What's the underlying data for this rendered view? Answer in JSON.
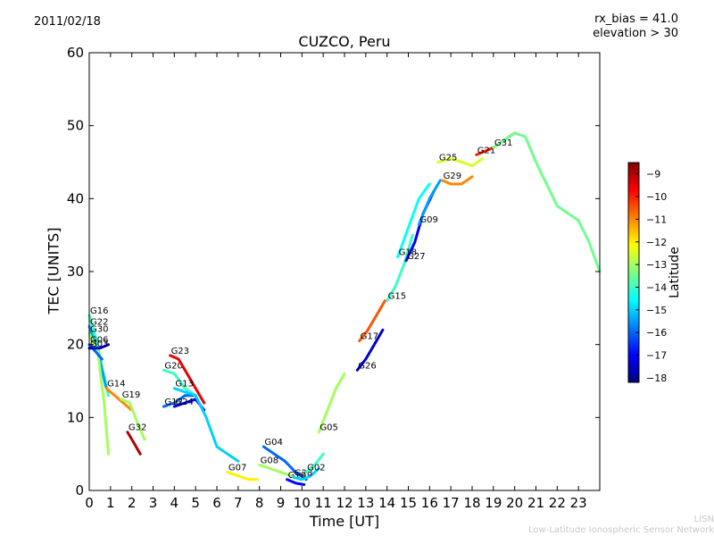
{
  "header": {
    "date": "2011/02/18",
    "annotation_line1": "rx_bias = 41.0",
    "annotation_line2": "elevation > 30"
  },
  "footer": {
    "credit_line1": "LISN",
    "credit_line2": "Low-Latitude Ionospheric Sensor Network"
  },
  "chart_data": {
    "type": "line",
    "title": "CUZCO, Peru",
    "xlabel": "Time [UT]",
    "ylabel": "TEC [UNITS]",
    "xlim": [
      0,
      24
    ],
    "ylim": [
      0,
      60
    ],
    "xticks": [
      0,
      1,
      2,
      3,
      4,
      5,
      6,
      7,
      8,
      9,
      10,
      11,
      12,
      13,
      14,
      15,
      16,
      17,
      18,
      19,
      20,
      21,
      22,
      23
    ],
    "yticks": [
      0,
      10,
      20,
      30,
      40,
      50,
      60
    ],
    "colorbar": {
      "label": "Latitude",
      "range": [
        -18.2,
        -8.5
      ],
      "ticks": [
        -9,
        -10,
        -11,
        -12,
        -13,
        -14,
        -15,
        -16,
        -17,
        -18
      ],
      "colormap": "jet",
      "colors": [
        "#00007f",
        "#0000ff",
        "#007fff",
        "#00ffff",
        "#7fff7f",
        "#ffff00",
        "#ff7f00",
        "#ff0000",
        "#7f0000"
      ]
    },
    "series": [
      {
        "name": "G16",
        "lat": -14.0,
        "x": [
          0,
          0.3,
          0.6,
          0.9
        ],
        "y": [
          24,
          21,
          17,
          13
        ]
      },
      {
        "name": "G22",
        "lat": -15.5,
        "x": [
          0,
          0.4,
          0.8
        ],
        "y": [
          22.5,
          19,
          14
        ]
      },
      {
        "name": "G30",
        "lat": -13.0,
        "x": [
          0,
          0.4,
          0.7,
          0.9
        ],
        "y": [
          21.5,
          19,
          12,
          5
        ]
      },
      {
        "name": "G06",
        "lat": -16.0,
        "x": [
          0,
          0.3,
          0.6
        ],
        "y": [
          20,
          19,
          18
        ]
      },
      {
        "name": "G03",
        "lat": -17.5,
        "x": [
          0,
          0.5,
          0.9
        ],
        "y": [
          19.5,
          19.5,
          20
        ]
      },
      {
        "name": "G14",
        "lat": -11.0,
        "x": [
          0.8,
          1.2,
          1.6,
          2.0
        ],
        "y": [
          14,
          13,
          12,
          11
        ]
      },
      {
        "name": "G19",
        "lat": -13.0,
        "x": [
          1.5,
          1.9,
          2.3,
          2.6
        ],
        "y": [
          12.5,
          12,
          9,
          7
        ]
      },
      {
        "name": "G32",
        "lat": -9.0,
        "x": [
          1.8,
          2.1,
          2.4
        ],
        "y": [
          8,
          6.5,
          5
        ]
      },
      {
        "name": "G20",
        "lat": -14.0,
        "x": [
          3.5,
          4.0,
          4.5,
          5.0
        ],
        "y": [
          16.5,
          16,
          14,
          13
        ]
      },
      {
        "name": "G23",
        "lat": -9.5,
        "x": [
          3.8,
          4.2,
          4.6,
          5.0,
          5.4
        ],
        "y": [
          18.5,
          18,
          16,
          14,
          12
        ]
      },
      {
        "name": "G12",
        "lat": -16.0,
        "x": [
          3.5,
          4.0,
          4.5,
          5.0
        ],
        "y": [
          11.5,
          12,
          13,
          13
        ]
      },
      {
        "name": "G24",
        "lat": -17.0,
        "x": [
          4.0,
          4.5,
          5.0,
          5.4
        ],
        "y": [
          11.5,
          12,
          12.5,
          11
        ]
      },
      {
        "name": "G13",
        "lat": -15.0,
        "x": [
          4.0,
          4.5,
          5.0,
          5.5,
          6.0,
          6.5,
          7.0
        ],
        "y": [
          14,
          13.5,
          13,
          10,
          6,
          5,
          4
        ]
      },
      {
        "name": "G07",
        "lat": -12.0,
        "x": [
          6.5,
          7.0,
          7.5,
          7.9
        ],
        "y": [
          2.5,
          2,
          1.5,
          1.5
        ]
      },
      {
        "name": "G04",
        "lat": -16.0,
        "x": [
          8.2,
          8.7,
          9.2,
          9.7,
          10.2
        ],
        "y": [
          6,
          5,
          4,
          2.5,
          1.5
        ]
      },
      {
        "name": "G08",
        "lat": -13.0,
        "x": [
          8.0,
          8.5,
          9.0,
          9.5
        ],
        "y": [
          3.5,
          3,
          2.5,
          2
        ]
      },
      {
        "name": "G10",
        "lat": -17.0,
        "x": [
          9.3,
          9.7,
          10.1
        ],
        "y": [
          1.5,
          1,
          0.8
        ]
      },
      {
        "name": "G28",
        "lat": -15.0,
        "x": [
          9.6,
          10.0,
          10.4,
          10.8
        ],
        "y": [
          1.8,
          1.5,
          2,
          3
        ]
      },
      {
        "name": "G02",
        "lat": -14.0,
        "x": [
          10.2,
          10.6,
          11.0
        ],
        "y": [
          2.5,
          3.5,
          5
        ]
      },
      {
        "name": "G05",
        "lat": -13.0,
        "x": [
          10.8,
          11.2,
          11.6,
          12.0
        ],
        "y": [
          8,
          11,
          14,
          16
        ]
      },
      {
        "name": "G26",
        "lat": -17.5,
        "x": [
          12.6,
          13.0,
          13.4,
          13.8
        ],
        "y": [
          16.5,
          18,
          20,
          22
        ]
      },
      {
        "name": "G17",
        "lat": -10.5,
        "x": [
          12.7,
          13.1,
          13.5,
          13.9
        ],
        "y": [
          20.5,
          22,
          24,
          26
        ]
      },
      {
        "name": "G15",
        "lat": -14.0,
        "x": [
          14.0,
          14.4,
          14.8,
          15.2
        ],
        "y": [
          26,
          28,
          31,
          35
        ]
      },
      {
        "name": "G18",
        "lat": -14.5,
        "x": [
          14.5,
          15.0,
          15.5,
          16.0
        ],
        "y": [
          32,
          36,
          40,
          42
        ]
      },
      {
        "name": "G27",
        "lat": -17.0,
        "x": [
          14.9,
          15.3,
          15.7,
          16.2
        ],
        "y": [
          31.5,
          34,
          38,
          41
        ]
      },
      {
        "name": "G09",
        "lat": -15.5,
        "x": [
          15.5,
          16.0,
          16.5
        ],
        "y": [
          36.5,
          40,
          42.5
        ]
      },
      {
        "name": "G29",
        "lat": -11.0,
        "x": [
          16.6,
          17.0,
          17.5,
          18.0
        ],
        "y": [
          42.5,
          42,
          42,
          43
        ]
      },
      {
        "name": "G25",
        "lat": -12.5,
        "x": [
          16.4,
          17.0,
          17.5,
          18.0,
          18.5
        ],
        "y": [
          45,
          45.5,
          45,
          44.5,
          45.5
        ]
      },
      {
        "name": "G21",
        "lat": -10.0,
        "x": [
          18.2,
          18.6,
          19.0,
          19.5,
          20.0
        ],
        "y": [
          46,
          46.5,
          47,
          48,
          49
        ]
      },
      {
        "name": "G31",
        "lat": -13.5,
        "x": [
          19.0,
          19.5,
          20.0,
          20.5,
          21.0,
          21.5,
          22.0,
          22.5,
          23.0,
          23.5,
          24.0
        ],
        "y": [
          47,
          48,
          49,
          48.5,
          45,
          42,
          39,
          38,
          37,
          34,
          30
        ]
      }
    ]
  }
}
